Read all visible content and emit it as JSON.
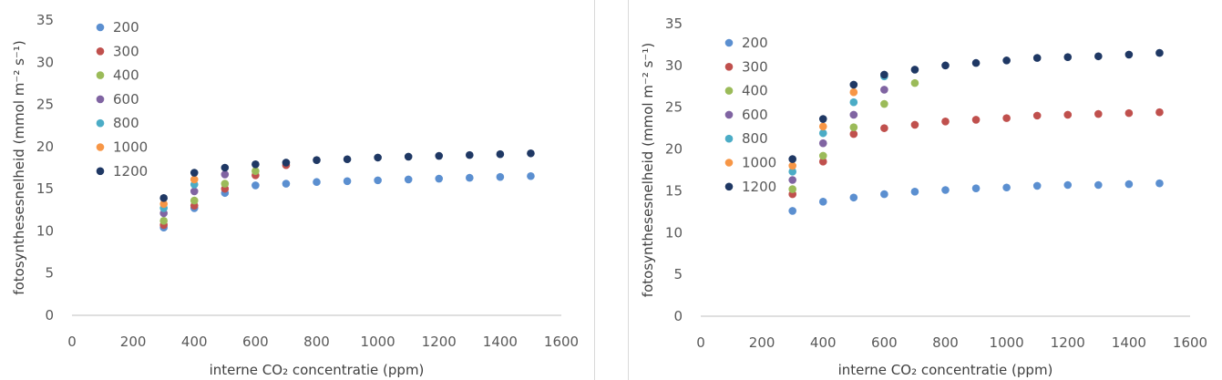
{
  "chart_data": [
    {
      "type": "scatter",
      "xlabel": "interne CO₂ concentratie (ppm)",
      "ylabel": "fotosynthesesnelheid (mmol m⁻² s⁻¹)",
      "xlim": [
        0,
        1600
      ],
      "ylim": [
        0,
        35
      ],
      "xticks": [
        0,
        200,
        400,
        600,
        800,
        1000,
        1200,
        1400,
        1600
      ],
      "yticks": [
        0,
        5,
        10,
        15,
        20,
        25,
        30,
        35
      ],
      "grid": false,
      "legend_position": "top-left",
      "series": [
        {
          "name": "200",
          "color": "#5b8fd0",
          "points": [
            [
              300,
              10.4
            ],
            [
              400,
              12.7
            ],
            [
              500,
              14.5
            ],
            [
              600,
              15.4
            ],
            [
              700,
              15.6
            ],
            [
              800,
              15.8
            ],
            [
              900,
              15.9
            ],
            [
              1000,
              16.0
            ],
            [
              1100,
              16.1
            ],
            [
              1200,
              16.2
            ],
            [
              1300,
              16.3
            ],
            [
              1400,
              16.4
            ],
            [
              1500,
              16.5
            ]
          ]
        },
        {
          "name": "300",
          "color": "#c0504d",
          "points": [
            [
              300,
              10.7
            ],
            [
              400,
              13.0
            ],
            [
              500,
              15.0
            ],
            [
              600,
              16.6
            ],
            [
              700,
              17.8
            ]
          ]
        },
        {
          "name": "400",
          "color": "#9bbb59",
          "points": [
            [
              300,
              11.2
            ],
            [
              400,
              13.6
            ],
            [
              500,
              15.6
            ],
            [
              600,
              17.1
            ]
          ]
        },
        {
          "name": "600",
          "color": "#8064a2",
          "points": [
            [
              300,
              12.1
            ],
            [
              400,
              14.7
            ],
            [
              500,
              16.7
            ]
          ]
        },
        {
          "name": "800",
          "color": "#4bacc6",
          "points": [
            [
              300,
              12.7
            ],
            [
              400,
              15.5
            ]
          ]
        },
        {
          "name": "1000",
          "color": "#f79646",
          "points": [
            [
              300,
              13.2
            ],
            [
              400,
              16.1
            ]
          ]
        },
        {
          "name": "1200",
          "color": "#1f3864",
          "points": [
            [
              300,
              13.9
            ],
            [
              400,
              16.9
            ],
            [
              500,
              17.5
            ],
            [
              600,
              17.9
            ],
            [
              700,
              18.1
            ],
            [
              800,
              18.4
            ],
            [
              900,
              18.5
            ],
            [
              1000,
              18.7
            ],
            [
              1100,
              18.8
            ],
            [
              1200,
              18.9
            ],
            [
              1300,
              19.0
            ],
            [
              1400,
              19.1
            ],
            [
              1500,
              19.2
            ]
          ]
        }
      ]
    },
    {
      "type": "scatter",
      "xlabel": "interne CO₂ concentratie (ppm)",
      "ylabel": "fotosynthesesnelheid (mmol m⁻² s⁻¹)",
      "xlim": [
        0,
        1600
      ],
      "ylim": [
        0,
        35
      ],
      "xticks": [
        0,
        200,
        400,
        600,
        800,
        1000,
        1200,
        1400,
        1600
      ],
      "yticks": [
        0,
        5,
        10,
        15,
        20,
        25,
        30,
        35
      ],
      "grid": false,
      "legend_position": "top-left",
      "series": [
        {
          "name": "200",
          "color": "#5b8fd0",
          "points": [
            [
              300,
              12.6
            ],
            [
              400,
              13.7
            ],
            [
              500,
              14.2
            ],
            [
              600,
              14.6
            ],
            [
              700,
              14.9
            ],
            [
              800,
              15.1
            ],
            [
              900,
              15.3
            ],
            [
              1000,
              15.4
            ],
            [
              1100,
              15.6
            ],
            [
              1200,
              15.7
            ],
            [
              1300,
              15.7
            ],
            [
              1400,
              15.8
            ],
            [
              1500,
              15.9
            ]
          ]
        },
        {
          "name": "300",
          "color": "#c0504d",
          "points": [
            [
              300,
              14.6
            ],
            [
              400,
              18.5
            ],
            [
              500,
              21.8
            ],
            [
              600,
              22.5
            ],
            [
              700,
              22.9
            ],
            [
              800,
              23.3
            ],
            [
              900,
              23.5
            ],
            [
              1000,
              23.7
            ],
            [
              1100,
              24.0
            ],
            [
              1200,
              24.1
            ],
            [
              1300,
              24.2
            ],
            [
              1400,
              24.3
            ],
            [
              1500,
              24.4
            ]
          ]
        },
        {
          "name": "400",
          "color": "#9bbb59",
          "points": [
            [
              300,
              15.2
            ],
            [
              400,
              19.2
            ],
            [
              500,
              22.6
            ],
            [
              600,
              25.4
            ],
            [
              700,
              27.9
            ]
          ]
        },
        {
          "name": "600",
          "color": "#8064a2",
          "points": [
            [
              300,
              16.3
            ],
            [
              400,
              20.7
            ],
            [
              500,
              24.1
            ],
            [
              600,
              27.1
            ]
          ]
        },
        {
          "name": "800",
          "color": "#4bacc6",
          "points": [
            [
              300,
              17.3
            ],
            [
              400,
              21.9
            ],
            [
              500,
              25.6
            ],
            [
              600,
              28.7
            ]
          ]
        },
        {
          "name": "1000",
          "color": "#f79646",
          "points": [
            [
              300,
              18.0
            ],
            [
              400,
              22.7
            ],
            [
              500,
              26.8
            ]
          ]
        },
        {
          "name": "1200",
          "color": "#1f3864",
          "points": [
            [
              300,
              18.8
            ],
            [
              400,
              23.6
            ],
            [
              500,
              27.7
            ],
            [
              600,
              28.9
            ],
            [
              700,
              29.5
            ],
            [
              800,
              30.0
            ],
            [
              900,
              30.3
            ],
            [
              1000,
              30.6
            ],
            [
              1100,
              30.9
            ],
            [
              1200,
              31.0
            ],
            [
              1300,
              31.1
            ],
            [
              1400,
              31.3
            ],
            [
              1500,
              31.5
            ]
          ]
        }
      ]
    }
  ]
}
